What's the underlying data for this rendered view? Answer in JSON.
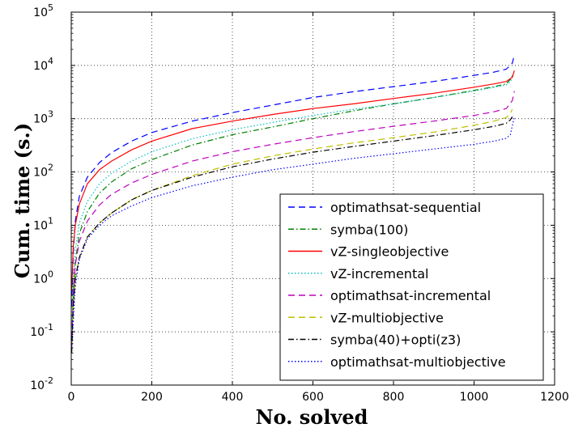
{
  "chart_data": {
    "type": "line",
    "title": "",
    "xlabel": "No. solved",
    "ylabel": "Cum. time (s.)",
    "xlim": [
      0,
      1200
    ],
    "ylim": [
      0.01,
      100000
    ],
    "yscale": "log",
    "grid": true,
    "legend_position": "lower-right",
    "x_ticks": [
      "0",
      "200",
      "400",
      "600",
      "800",
      "1000",
      "1200"
    ],
    "y_ticks": [
      {
        "base": "10",
        "exp": "-2"
      },
      {
        "base": "10",
        "exp": "-1"
      },
      {
        "base": "10",
        "exp": "0"
      },
      {
        "base": "10",
        "exp": "1"
      },
      {
        "base": "10",
        "exp": "2"
      },
      {
        "base": "10",
        "exp": "3"
      },
      {
        "base": "10",
        "exp": "4"
      },
      {
        "base": "10",
        "exp": "5"
      }
    ],
    "series": [
      {
        "name": "optimathsat-sequential",
        "color": "#0000ff",
        "dash": "dashed",
        "x": [
          1,
          5,
          10,
          20,
          40,
          70,
          100,
          150,
          200,
          300,
          400,
          500,
          600,
          700,
          800,
          900,
          1000,
          1050,
          1080,
          1095,
          1100
        ],
        "y": [
          0.3,
          3,
          12,
          35,
          80,
          150,
          230,
          380,
          550,
          900,
          1300,
          1800,
          2500,
          3200,
          4000,
          5000,
          6500,
          7500,
          8500,
          11000,
          16000
        ]
      },
      {
        "name": "symba(100)",
        "color": "#008000",
        "dash": "dashdot",
        "x": [
          1,
          5,
          10,
          20,
          40,
          70,
          100,
          150,
          200,
          300,
          400,
          500,
          600,
          700,
          800,
          900,
          1000,
          1050,
          1080,
          1090,
          1095
        ],
        "y": [
          0.05,
          0.5,
          2,
          7,
          18,
          40,
          65,
          115,
          170,
          320,
          500,
          700,
          1000,
          1400,
          1900,
          2500,
          3400,
          4000,
          4500,
          5500,
          6500
        ]
      },
      {
        "name": "vZ-singleobjective",
        "color": "#ff0000",
        "dash": "solid",
        "x": [
          1,
          5,
          10,
          20,
          40,
          70,
          100,
          150,
          200,
          300,
          400,
          500,
          600,
          700,
          800,
          900,
          1000,
          1050,
          1080,
          1095,
          1100
        ],
        "y": [
          0.6,
          4,
          10,
          25,
          60,
          110,
          160,
          260,
          380,
          650,
          900,
          1200,
          1550,
          1900,
          2400,
          3000,
          3900,
          4500,
          5000,
          6000,
          8000
        ]
      },
      {
        "name": "vZ-incremental",
        "color": "#00bfbf",
        "dash": "dotted",
        "x": [
          1,
          5,
          10,
          20,
          40,
          70,
          100,
          150,
          200,
          300,
          400,
          500,
          600,
          700,
          800,
          900,
          1000,
          1050,
          1080,
          1090,
          1095
        ],
        "y": [
          0.1,
          1,
          3.5,
          11,
          28,
          60,
          95,
          160,
          240,
          420,
          620,
          850,
          1150,
          1500,
          1900,
          2500,
          3300,
          3900,
          4300,
          5000,
          5800
        ]
      },
      {
        "name": "optimathsat-incremental",
        "color": "#bf00bf",
        "dash": "dashed",
        "x": [
          1,
          5,
          10,
          20,
          40,
          70,
          100,
          150,
          200,
          300,
          400,
          500,
          600,
          700,
          800,
          900,
          1000,
          1050,
          1080,
          1095,
          1100
        ],
        "y": [
          0.05,
          0.5,
          1.8,
          5,
          12,
          24,
          38,
          62,
          90,
          160,
          240,
          330,
          440,
          570,
          720,
          900,
          1150,
          1350,
          1550,
          2200,
          3300
        ]
      },
      {
        "name": "vZ-multiobjective",
        "color": "#bfbf00",
        "dash": "dashed",
        "x": [
          1,
          5,
          10,
          20,
          40,
          70,
          100,
          150,
          200,
          300,
          400,
          500,
          600,
          700,
          800,
          900,
          1000,
          1050,
          1080,
          1090,
          1095
        ],
        "y": [
          0.04,
          0.3,
          1,
          2.5,
          6,
          11,
          17,
          30,
          45,
          85,
          140,
          200,
          270,
          350,
          440,
          560,
          750,
          900,
          1050,
          1250,
          1500
        ]
      },
      {
        "name": "symba(40)+opti(z3)",
        "color": "#000000",
        "dash": "dashdot",
        "x": [
          1,
          5,
          10,
          20,
          40,
          70,
          100,
          150,
          200,
          300,
          400,
          500,
          600,
          700,
          800,
          900,
          1000,
          1050,
          1080,
          1090,
          1095
        ],
        "y": [
          0.04,
          0.3,
          1,
          2.5,
          6,
          11,
          17,
          30,
          45,
          80,
          125,
          175,
          235,
          300,
          380,
          480,
          620,
          720,
          820,
          950,
          1100
        ]
      },
      {
        "name": "optimathsat-multiobjective",
        "color": "#0000ff",
        "dash": "dotted",
        "x": [
          1,
          5,
          10,
          20,
          40,
          70,
          100,
          150,
          200,
          300,
          400,
          500,
          600,
          700,
          800,
          900,
          1000,
          1050,
          1080,
          1090,
          1100
        ],
        "y": [
          0.05,
          0.15,
          0.7,
          2.3,
          5.5,
          10,
          15,
          23,
          33,
          55,
          80,
          110,
          140,
          180,
          220,
          270,
          330,
          380,
          430,
          500,
          1100
        ]
      }
    ]
  }
}
